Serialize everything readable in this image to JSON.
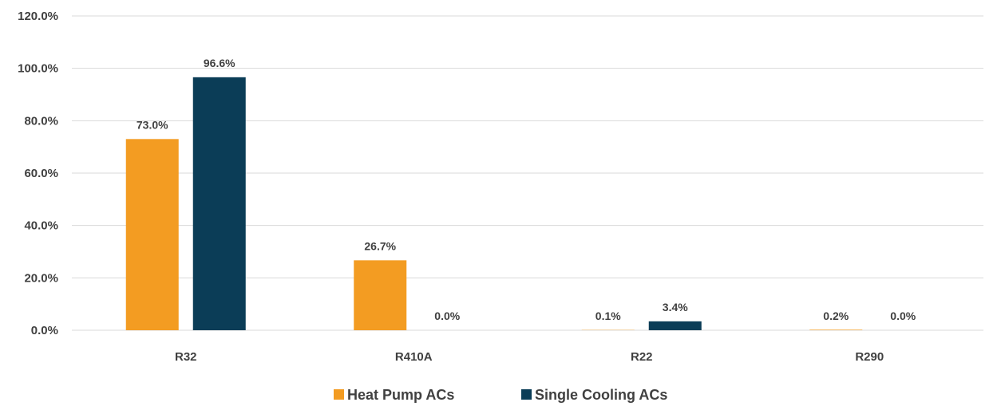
{
  "chart_data": {
    "type": "bar",
    "categories": [
      "R32",
      "R410A",
      "R22",
      "R290"
    ],
    "series": [
      {
        "name": "Heat Pump ACs",
        "values": [
          73.0,
          26.7,
          0.1,
          0.2
        ],
        "labels": [
          "73.0%",
          "26.7%",
          "0.1%",
          "0.2%"
        ],
        "color": "#f39c22"
      },
      {
        "name": "Single Cooling ACs",
        "values": [
          96.6,
          0.0,
          3.4,
          0.0
        ],
        "labels": [
          "96.6%",
          "0.0%",
          "3.4%",
          "0.0%"
        ],
        "color": "#0b3d57"
      }
    ],
    "yticks": [
      "0.0%",
      "20.0%",
      "40.0%",
      "60.0%",
      "80.0%",
      "100.0%",
      "120.0%"
    ],
    "ylim": [
      0,
      120
    ],
    "grid": true,
    "legend_position": "bottom"
  }
}
